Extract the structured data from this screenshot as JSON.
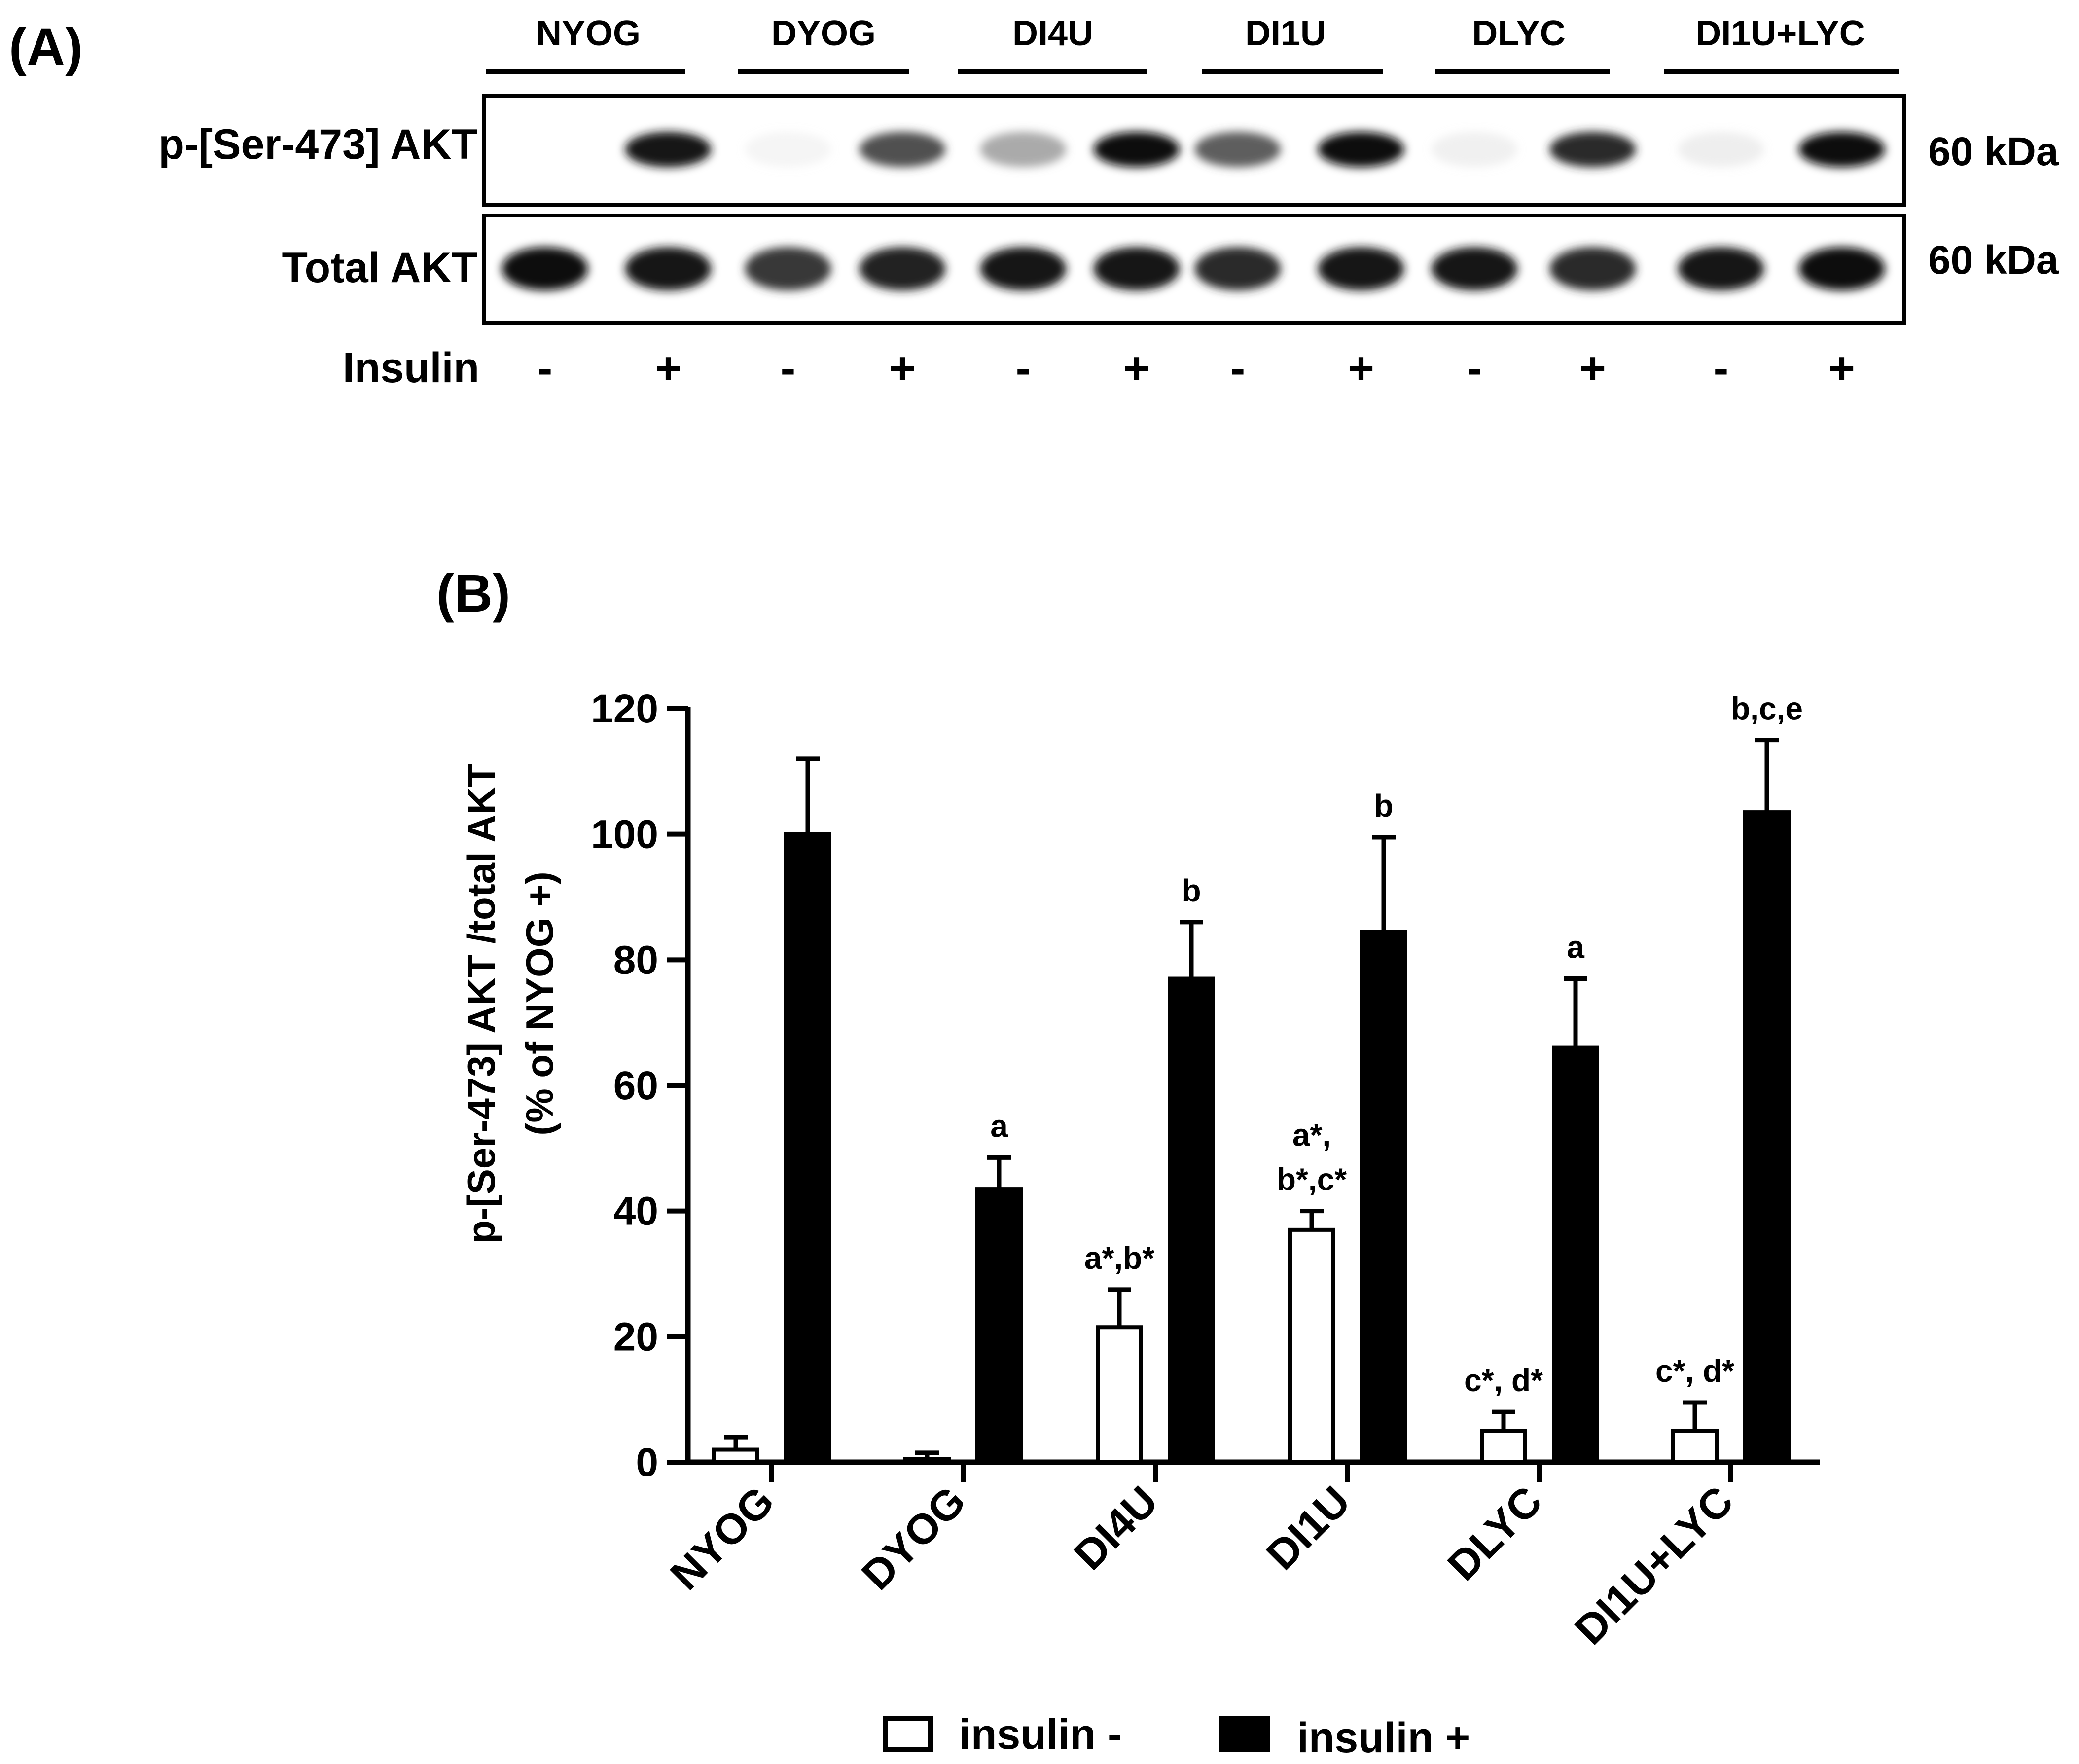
{
  "panel_a": {
    "label": "(A)",
    "groups": [
      "NYOG",
      "DYOG",
      "DI4U",
      "DI1U",
      "DLYC",
      "DI1U+LYC"
    ],
    "rows": [
      {
        "label": "p-[Ser-473] AKT",
        "mw": "60 kDa",
        "band_intensity": [
          0.0,
          0.95,
          0.06,
          0.72,
          0.45,
          0.98,
          0.68,
          1.0,
          0.1,
          0.85,
          0.12,
          1.0
        ]
      },
      {
        "label": "Total AKT",
        "mw": "60 kDa",
        "band_intensity": [
          1.0,
          0.95,
          0.8,
          0.9,
          0.95,
          0.95,
          0.85,
          0.95,
          0.95,
          0.85,
          0.95,
          1.0
        ]
      }
    ],
    "insulin_label": "Insulin",
    "insulin_signs": [
      "-",
      "+",
      "-",
      "+",
      "-",
      "+",
      "-",
      "+",
      "-",
      "+",
      "-",
      "+"
    ]
  },
  "panel_b": {
    "label": "(B)"
  },
  "chart_data": {
    "type": "bar",
    "title": "",
    "xlabel": "",
    "ylabel": "p-[Ser-473] AKT /total AKT",
    "ylabel2": "(% of NYOG +)",
    "ylim": [
      0,
      120
    ],
    "yticks": [
      0,
      20,
      40,
      60,
      80,
      100,
      120
    ],
    "categories": [
      "NYOG",
      "DYOG",
      "DI4U",
      "DI1U",
      "DLYC",
      "DI1U+LYC"
    ],
    "series": [
      {
        "name": "insulin -",
        "color": "#ffffff",
        "values": [
          2,
          0.5,
          21.5,
          37,
          5,
          5
        ],
        "errors": [
          2,
          1,
          6,
          3,
          3,
          4.5
        ],
        "annotations": [
          [],
          [],
          [
            "a*,b*"
          ],
          [
            "a*,",
            "b*,c*"
          ],
          [
            "c*, d*"
          ],
          [
            "c*, d*"
          ]
        ]
      },
      {
        "name": "insulin +",
        "color": "#000000",
        "values": [
          100,
          43.5,
          77,
          84.5,
          66,
          103.5
        ],
        "errors": [
          12,
          5,
          9,
          15,
          11,
          11.5
        ],
        "annotations": [
          [],
          [
            "a"
          ],
          [
            "b"
          ],
          [
            "b"
          ],
          [
            "a"
          ],
          [
            "b,c,e"
          ]
        ]
      }
    ],
    "legend": [
      "insulin -",
      "insulin +"
    ],
    "legend_position": "bottom-center"
  }
}
